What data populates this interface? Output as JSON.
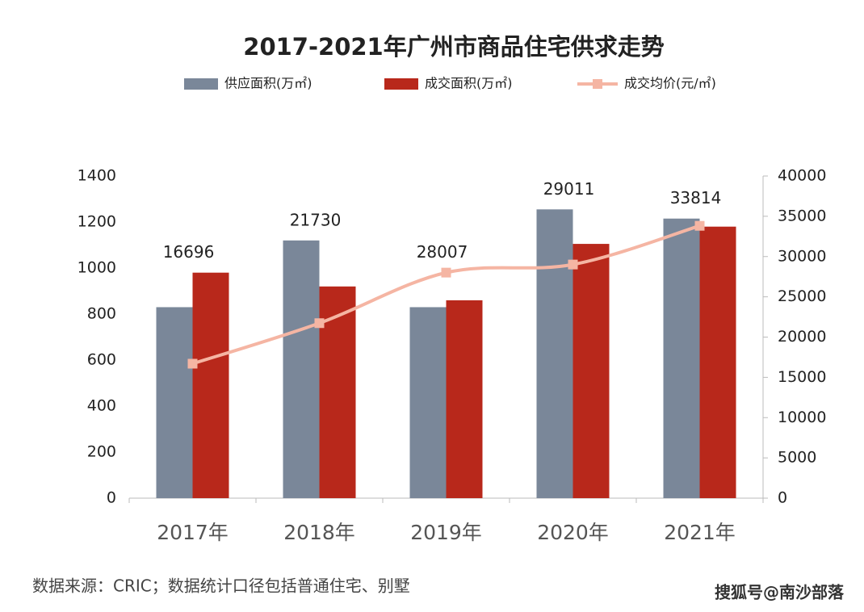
{
  "chart_data": {
    "type": "bar",
    "title": "2017-2021年广州市商品住宅供求走势",
    "categories": [
      "2017年",
      "2018年",
      "2019年",
      "2020年",
      "2021年"
    ],
    "series": [
      {
        "name": "供应面积(万㎡)",
        "color": "#7a8799",
        "type": "bar",
        "values": [
          830,
          1120,
          830,
          1255,
          1215
        ]
      },
      {
        "name": "成交面积(万㎡)",
        "color": "#b8281b",
        "type": "bar",
        "values": [
          980,
          920,
          860,
          1105,
          1180
        ]
      },
      {
        "name": "成交均价(元/㎡)",
        "color": "#f5b5a3",
        "type": "line",
        "axis": "y2",
        "values": [
          16696,
          21730,
          28007,
          29011,
          33814
        ]
      }
    ],
    "ylim": [
      0,
      1400
    ],
    "yticks": [
      0,
      200,
      400,
      600,
      800,
      1000,
      1200,
      1400
    ],
    "y2lim": [
      0,
      40000
    ],
    "y2ticks": [
      0,
      5000,
      10000,
      15000,
      20000,
      25000,
      30000,
      35000,
      40000
    ],
    "grid": false,
    "legend": "top",
    "source": "数据来源：CRIC；数据统计口径包括普通住宅、别墅",
    "watermark": "搜狐号@南沙部落"
  }
}
